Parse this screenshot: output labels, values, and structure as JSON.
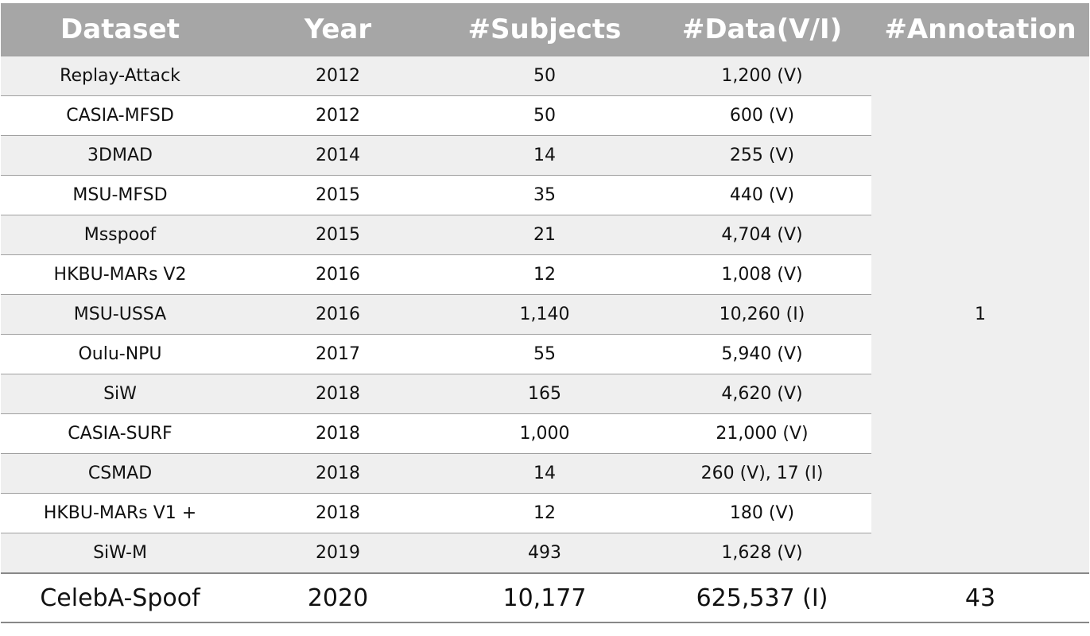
{
  "table": {
    "header": [
      "Dataset",
      "Year",
      "#Subjects",
      "#Data(V/I)",
      "#Annotation"
    ],
    "rows": [
      [
        "Replay-Attack",
        "2012",
        "50",
        "1,200 (V)"
      ],
      [
        "CASIA-MFSD",
        "2012",
        "50",
        "600 (V)"
      ],
      [
        "3DMAD",
        "2014",
        "14",
        "255 (V)"
      ],
      [
        "MSU-MFSD",
        "2015",
        "35",
        "440 (V)"
      ],
      [
        "Msspoof",
        "2015",
        "21",
        "4,704 (V)"
      ],
      [
        "HKBU-MARs V2",
        "2016",
        "12",
        "1,008 (V)"
      ],
      [
        "MSU-USSA",
        "2016",
        "1,140",
        "10,260 (I)"
      ],
      [
        "Oulu-NPU",
        "2017",
        "55",
        "5,940 (V)"
      ],
      [
        "SiW",
        "2018",
        "165",
        "4,620 (V)"
      ],
      [
        "CASIA-SURF",
        "2018",
        "1,000",
        "21,000 (V)"
      ],
      [
        "CSMAD",
        "2018",
        "14",
        "260 (V), 17 (I)"
      ],
      [
        "HKBU-MARs V1 +",
        "2018",
        "12",
        "180 (V)"
      ],
      [
        "SiW-M",
        "2019",
        "493",
        "1,628 (V)"
      ]
    ],
    "annotation": "1",
    "last_row": [
      "CelebA-Spoof",
      "2020",
      "10,177",
      "625,537 (I)",
      "43"
    ]
  }
}
